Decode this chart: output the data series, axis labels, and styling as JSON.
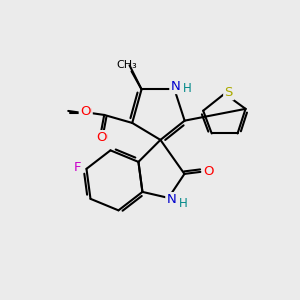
{
  "bg_color": "#ebebeb",
  "bond_color": "#000000",
  "bond_width": 1.5,
  "atom_colors": {
    "N": "#0000cc",
    "O": "#ff0000",
    "F": "#cc00cc",
    "S": "#aaaa00",
    "C": "#000000",
    "H": "#008888"
  },
  "font_size": 8.5
}
